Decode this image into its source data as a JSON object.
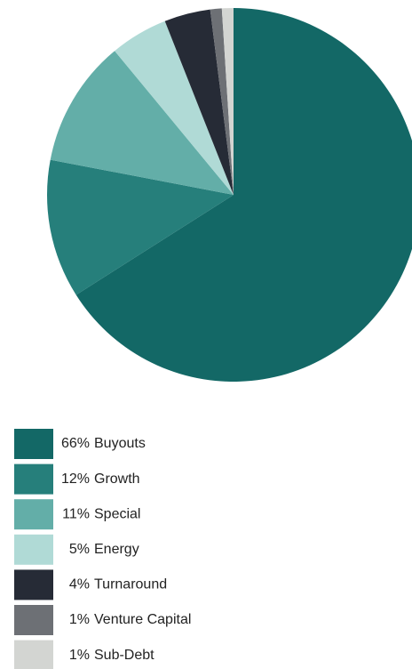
{
  "chart_data": {
    "type": "pie",
    "categories": [
      "Buyouts",
      "Growth",
      "Special",
      "Energy",
      "Turnaround",
      "Venture Capital",
      "Sub-Debt"
    ],
    "values": [
      66,
      12,
      11,
      5,
      4,
      1,
      1
    ],
    "value_labels": [
      "66%",
      "12%",
      "11%",
      "5%",
      "4%",
      "1%",
      "1%"
    ],
    "colors": [
      "#136866",
      "#267f7b",
      "#63aea8",
      "#b0dad6",
      "#262b36",
      "#6d7075",
      "#d3d5d2"
    ],
    "legend": "bottom-left"
  }
}
